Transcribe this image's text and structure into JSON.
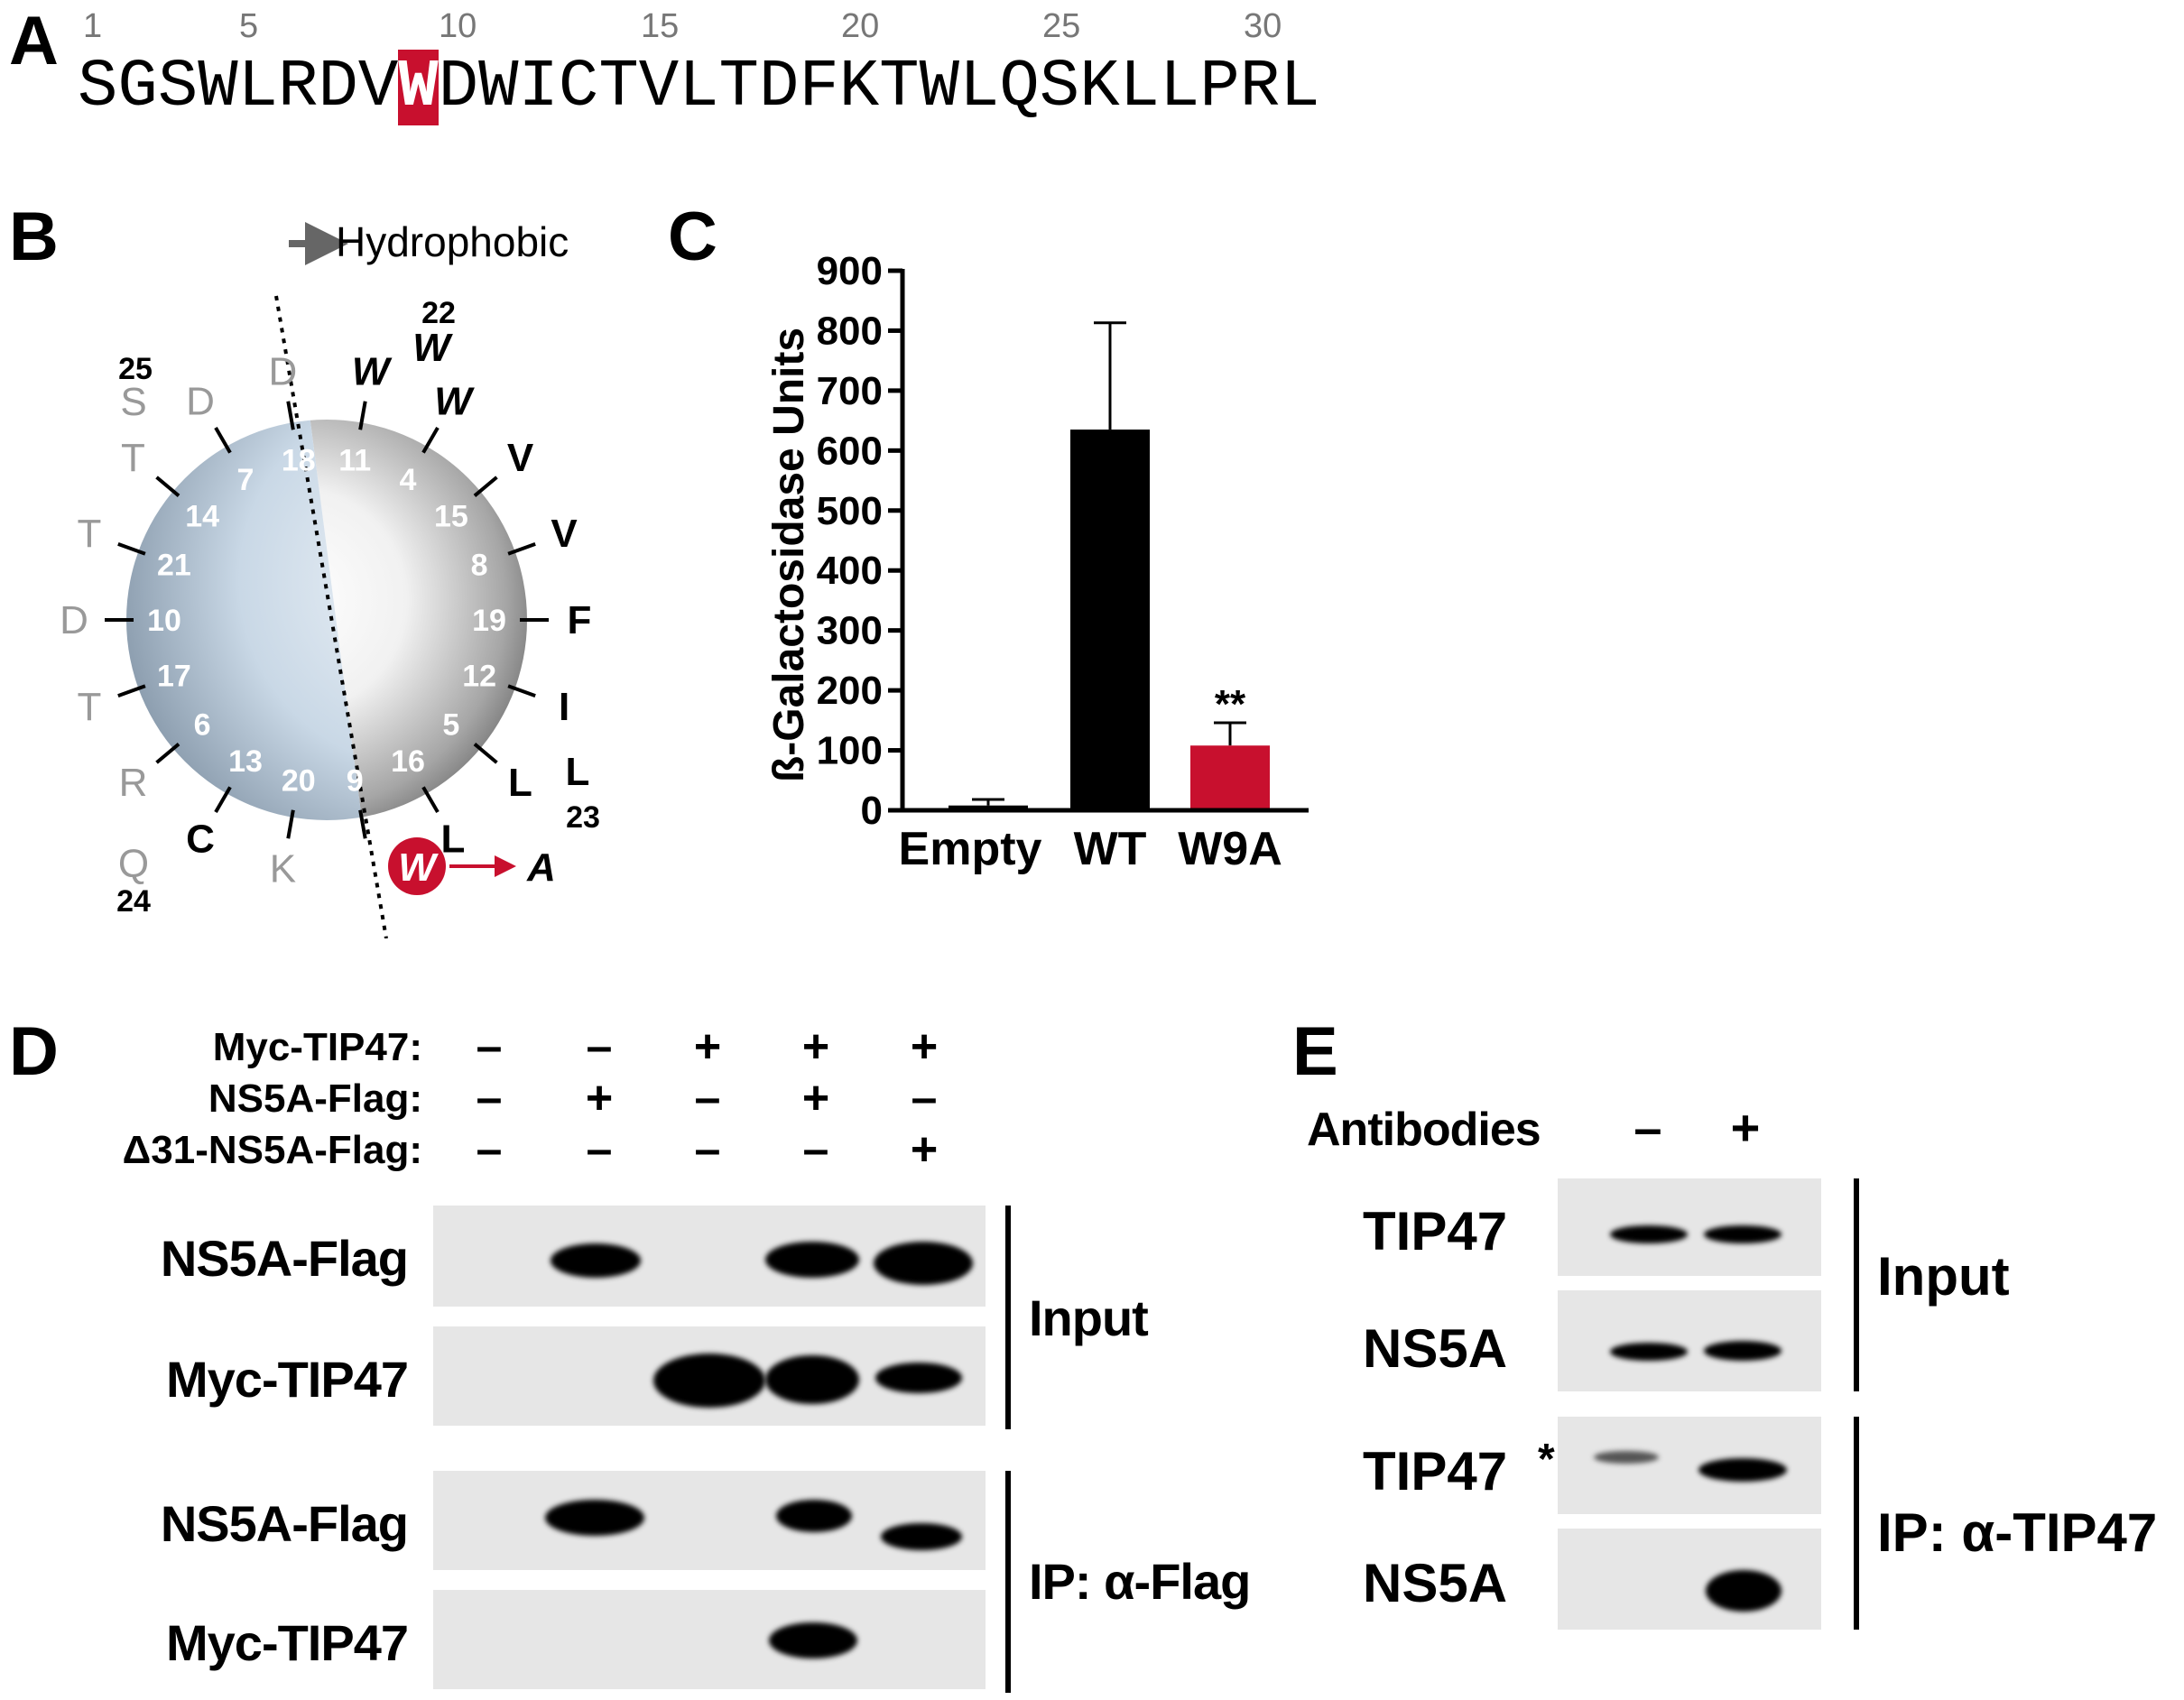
{
  "panels": {
    "a": "A",
    "b": "B",
    "c": "C",
    "d": "D",
    "e": "E"
  },
  "panel_a": {
    "numbers": [
      "1",
      "5",
      "10",
      "15",
      "20",
      "25",
      "30"
    ],
    "seq_before": "SGSWLRDV",
    "seq_highlight": "W",
    "seq_after": "DWICTVLTDFKTWLQSKLLPRL",
    "highlight_color": "#c8102e"
  },
  "panel_b": {
    "hydrophobic_label": "Hydrophobic",
    "ring_numbers": [
      "11",
      "4",
      "15",
      "8",
      "19",
      "12",
      "5",
      "16",
      "9",
      "20",
      "13",
      "6",
      "17",
      "10",
      "21",
      "14",
      "7",
      "18"
    ],
    "residues": [
      "W",
      "W",
      "V",
      "V",
      "F",
      "I",
      "L",
      "L",
      "W",
      "K",
      "C",
      "R",
      "T",
      "D",
      "T",
      "T",
      "D",
      "D"
    ],
    "outer_labels": {
      "n22": "22",
      "w22": "W",
      "n25": "25",
      "s25": "S",
      "l23": "L",
      "n23": "23",
      "q24": "Q",
      "n24": "24",
      "mut_from": "W",
      "mut_to": "A"
    }
  },
  "chart_data": {
    "type": "bar",
    "categories": [
      "Empty",
      "WT",
      "W9A"
    ],
    "values": [
      8,
      635,
      108
    ],
    "error": [
      10,
      178,
      38
    ],
    "colors": [
      "#000000",
      "#000000",
      "#c8102e"
    ],
    "ylabel": "ß-Galactosidase Units",
    "ylim": [
      0,
      900
    ],
    "yticks": [
      "0",
      "100",
      "200",
      "300",
      "400",
      "500",
      "600",
      "700",
      "800",
      "900"
    ],
    "annotations": [
      {
        "category": "W9A",
        "text": "**"
      }
    ]
  },
  "panel_d": {
    "conditions": [
      {
        "label": "Myc-TIP47:",
        "signs": [
          "–",
          "–",
          "+",
          "+",
          "+"
        ]
      },
      {
        "label": "NS5A-Flag:",
        "signs": [
          "–",
          "+",
          "–",
          "+",
          "–"
        ]
      },
      {
        "label": "Δ31-NS5A-Flag:",
        "signs": [
          "–",
          "–",
          "–",
          "–",
          "+"
        ]
      }
    ],
    "blots": [
      "NS5A-Flag",
      "Myc-TIP47",
      "NS5A-Flag",
      "Myc-TIP47"
    ],
    "groups": [
      "Input",
      "IP: α-Flag"
    ]
  },
  "panel_e": {
    "antibodies_label": "Antibodies",
    "signs": [
      "–",
      "+"
    ],
    "blots": [
      "TIP47",
      "NS5A",
      "TIP47",
      "NS5A"
    ],
    "asterisk": "*",
    "groups": [
      "Input",
      "IP: α-TIP47"
    ]
  }
}
